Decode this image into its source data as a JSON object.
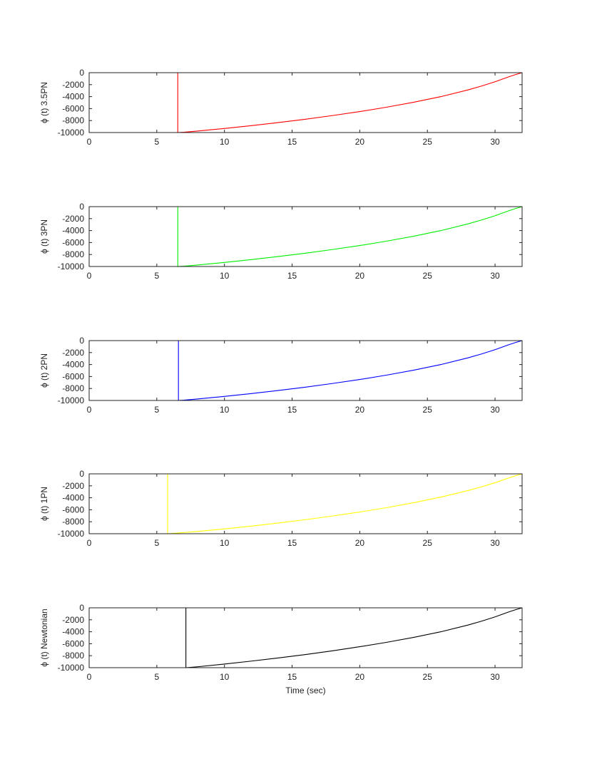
{
  "chart_data": [
    {
      "type": "line",
      "ylabel": "ϕ  (t) 3.5PN",
      "xlabel": "",
      "color": "#ff0000",
      "xlim": [
        0,
        32
      ],
      "ylim": [
        -10000,
        0
      ],
      "xticks": [
        0,
        5,
        10,
        15,
        20,
        25,
        30
      ],
      "yticks": [
        0,
        -2000,
        -4000,
        -6000,
        -8000,
        -10000
      ],
      "series": [
        {
          "x": [
            0,
            6.55,
            6.55,
            7,
            8,
            10,
            12,
            14,
            16,
            18,
            20,
            22,
            24,
            26,
            28,
            29,
            30,
            31,
            31.5,
            32
          ],
          "y": [
            0,
            0,
            -10000,
            -9950,
            -9760,
            -9320,
            -8850,
            -8330,
            -7770,
            -7160,
            -6500,
            -5760,
            -4930,
            -4000,
            -2880,
            -2230,
            -1520,
            -700,
            -330,
            0
          ]
        }
      ]
    },
    {
      "type": "line",
      "ylabel": "ϕ  (t) 3PN",
      "xlabel": "",
      "color": "#00ee00",
      "xlim": [
        0,
        32
      ],
      "ylim": [
        -10000,
        0
      ],
      "xticks": [
        0,
        5,
        10,
        15,
        20,
        25,
        30
      ],
      "yticks": [
        0,
        -2000,
        -4000,
        -6000,
        -8000,
        -10000
      ],
      "series": [
        {
          "x": [
            0,
            6.55,
            6.55,
            7,
            8,
            10,
            12,
            14,
            16,
            18,
            20,
            22,
            24,
            26,
            28,
            29,
            30,
            31,
            31.5,
            32
          ],
          "y": [
            0,
            0,
            -10000,
            -9950,
            -9760,
            -9320,
            -8850,
            -8330,
            -7770,
            -7160,
            -6500,
            -5760,
            -4930,
            -4000,
            -2880,
            -2230,
            -1520,
            -700,
            -330,
            0
          ]
        }
      ]
    },
    {
      "type": "line",
      "ylabel": "ϕ  (t) 2PN",
      "xlabel": "",
      "color": "#0000ff",
      "xlim": [
        0,
        32
      ],
      "ylim": [
        -10000,
        0
      ],
      "xticks": [
        0,
        5,
        10,
        15,
        20,
        25,
        30
      ],
      "yticks": [
        0,
        -2000,
        -4000,
        -6000,
        -8000,
        -10000
      ],
      "series": [
        {
          "x": [
            0,
            6.6,
            6.6,
            7,
            8,
            10,
            12,
            14,
            16,
            18,
            20,
            22,
            24,
            26,
            28,
            29,
            30,
            31,
            31.5,
            32
          ],
          "y": [
            0,
            0,
            -10000,
            -9950,
            -9760,
            -9320,
            -8850,
            -8330,
            -7770,
            -7160,
            -6500,
            -5760,
            -4930,
            -4000,
            -2880,
            -2230,
            -1520,
            -700,
            -330,
            0
          ]
        }
      ]
    },
    {
      "type": "line",
      "ylabel": "ϕ  (t) 1PN",
      "xlabel": "",
      "color": "#ffff00",
      "xlim": [
        0,
        32
      ],
      "ylim": [
        -10000,
        0
      ],
      "xticks": [
        0,
        5,
        10,
        15,
        20,
        25,
        30
      ],
      "yticks": [
        0,
        -2000,
        -4000,
        -6000,
        -8000,
        -10000
      ],
      "series": [
        {
          "x": [
            0,
            5.8,
            5.8,
            6,
            8,
            10,
            12,
            14,
            16,
            18,
            20,
            22,
            24,
            26,
            28,
            29,
            30,
            31,
            31.5,
            32
          ],
          "y": [
            0,
            0,
            -10000,
            -9980,
            -9620,
            -9200,
            -8730,
            -8210,
            -7650,
            -7040,
            -6380,
            -5640,
            -4810,
            -3880,
            -2790,
            -2170,
            -1480,
            -700,
            -330,
            0
          ]
        }
      ]
    },
    {
      "type": "line",
      "ylabel": "ϕ  (t) Newtonian",
      "xlabel": "Time (sec)",
      "color": "#000000",
      "xlim": [
        0,
        32
      ],
      "ylim": [
        -10000,
        0
      ],
      "xticks": [
        0,
        5,
        10,
        15,
        20,
        25,
        30
      ],
      "yticks": [
        0,
        -2000,
        -4000,
        -6000,
        -8000,
        -10000
      ],
      "series": [
        {
          "x": [
            0,
            7.15,
            7.15,
            8,
            10,
            12,
            14,
            16,
            18,
            20,
            22,
            24,
            26,
            28,
            29,
            30,
            31,
            31.5,
            32
          ],
          "y": [
            0,
            0,
            -10000,
            -9850,
            -9400,
            -8900,
            -8370,
            -7800,
            -7180,
            -6500,
            -5760,
            -4930,
            -4000,
            -2880,
            -2230,
            -1520,
            -700,
            -330,
            0
          ]
        }
      ]
    }
  ]
}
